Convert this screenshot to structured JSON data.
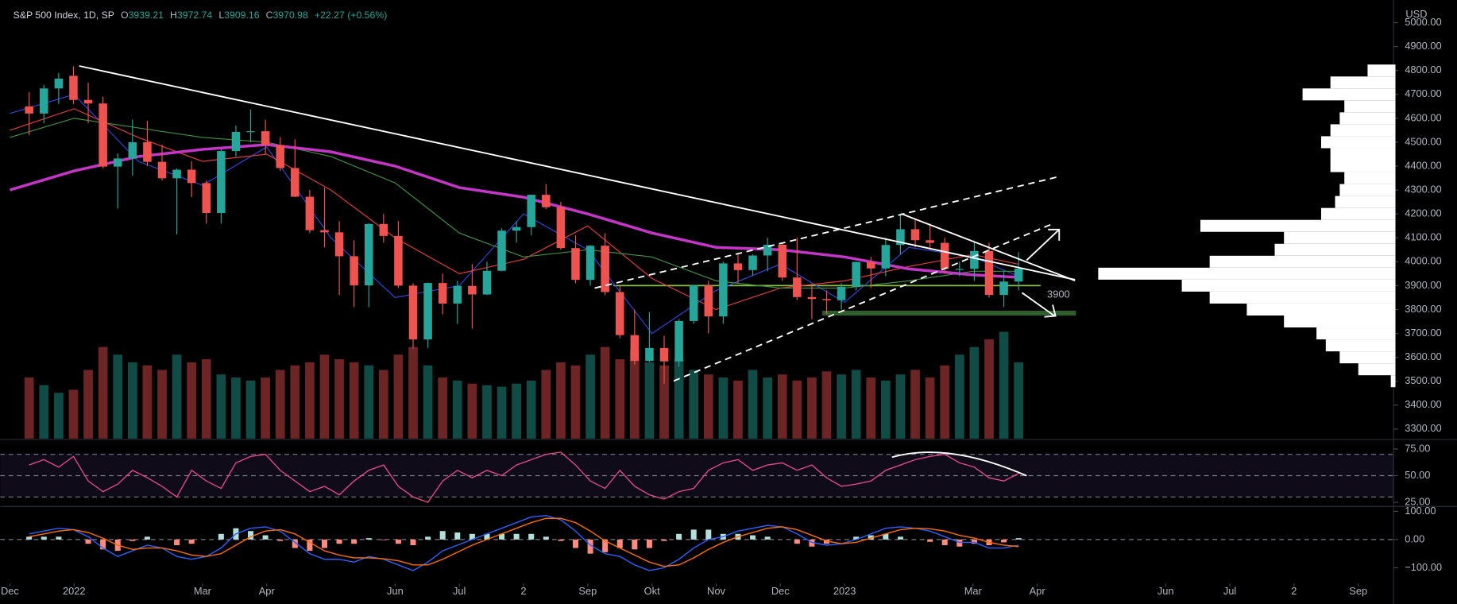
{
  "chart_data": [
    {
      "type": "candlestick",
      "title": "S&P 500 Index, 1D, SP",
      "ohlc_labels": [
        "O",
        "H",
        "L",
        "C"
      ],
      "ohlc_values": [
        3939.21,
        3972.74,
        3909.16,
        3970.98
      ],
      "change": "+22.27 (+0.56%)",
      "unit": "USD",
      "xlim": [
        -0.15,
        21.55
      ],
      "xticks": [
        {
          "value": 0,
          "label": "Dec"
        },
        {
          "value": 1,
          "label": "2022"
        },
        {
          "value": 3,
          "label": "Mar"
        },
        {
          "value": 4,
          "label": "Apr"
        },
        {
          "value": 6,
          "label": "Jun"
        },
        {
          "value": 7,
          "label": "Jul"
        },
        {
          "value": 8,
          "label": "2"
        },
        {
          "value": 9,
          "label": "Sep"
        },
        {
          "value": 10,
          "label": "Okt"
        },
        {
          "value": 11,
          "label": "Nov"
        },
        {
          "value": 12,
          "label": "Dec"
        },
        {
          "value": 13,
          "label": "2023"
        },
        {
          "value": 15,
          "label": "Mar"
        },
        {
          "value": 16,
          "label": "Apr"
        },
        {
          "value": 18,
          "label": "Jun"
        },
        {
          "value": 19,
          "label": "Jul"
        },
        {
          "value": 20,
          "label": "2"
        },
        {
          "value": 21,
          "label": "Sep"
        }
      ],
      "ylim": [
        3260,
        5095
      ],
      "yticks": [
        {
          "value": 3300,
          "label": "3300.00"
        },
        {
          "value": 3400,
          "label": "3400.00"
        },
        {
          "value": 3500,
          "label": "3500.00"
        },
        {
          "value": 3600,
          "label": "3600.00"
        },
        {
          "value": 3700,
          "label": "3700.00"
        },
        {
          "value": 3800,
          "label": "3800.00"
        },
        {
          "value": 3900,
          "label": "3900.00"
        },
        {
          "value": 4000,
          "label": "4000.00"
        },
        {
          "value": 4100,
          "label": "4100.00"
        },
        {
          "value": 4200,
          "label": "4200.00"
        },
        {
          "value": 4300,
          "label": "4300.00"
        },
        {
          "value": 4400,
          "label": "4400.00"
        },
        {
          "value": 4500,
          "label": "4500.00"
        },
        {
          "value": 4600,
          "label": "4600.00"
        },
        {
          "value": 4700,
          "label": "4700.00"
        },
        {
          "value": 4800,
          "label": "4800.00"
        },
        {
          "value": 4900,
          "label": "4900.00"
        },
        {
          "value": 5000,
          "label": "5000.00"
        }
      ],
      "up_color": "#26a69a",
      "down_color": "#ef5350",
      "x": [
        0.3,
        0.53,
        0.76,
        0.99,
        1.22,
        1.45,
        1.68,
        1.91,
        2.14,
        2.37,
        2.6,
        2.83,
        3.06,
        3.29,
        3.52,
        3.75,
        3.98,
        4.21,
        4.44,
        4.67,
        4.9,
        5.13,
        5.36,
        5.59,
        5.82,
        6.05,
        6.28,
        6.51,
        6.74,
        6.97,
        7.2,
        7.43,
        7.66,
        7.89,
        8.12,
        8.35,
        8.58,
        8.81,
        9.04,
        9.27,
        9.5,
        9.73,
        9.96,
        10.19,
        10.42,
        10.65,
        10.88,
        11.11,
        11.34,
        11.57,
        11.8,
        12.03,
        12.26,
        12.49,
        12.72,
        12.95,
        13.18,
        13.41,
        13.64,
        13.87,
        14.1,
        14.33,
        14.56,
        14.79,
        15.02,
        15.25,
        15.48,
        15.71
      ],
      "open": [
        4650,
        4620,
        4725,
        4778,
        4677,
        4662,
        4398,
        4432,
        4500,
        4418,
        4349,
        4385,
        4329,
        4204,
        4463,
        4543,
        4546,
        4488,
        4392,
        4272,
        4132,
        4123,
        4023,
        3901,
        4158,
        4108,
        3900,
        3675,
        3911,
        3825,
        3899,
        3863,
        3962,
        4130,
        4145,
        4280,
        4228,
        4057,
        3924,
        4067,
        3873,
        3693,
        3585,
        3639,
        3583,
        3752,
        3901,
        3771,
        3993,
        3965,
        4026,
        4071,
        3934,
        3852,
        3844,
        3839,
        3895,
        3999,
        3972,
        4070,
        4136,
        4090,
        4079,
        3970,
        3970,
        4045,
        3861,
        3917
      ],
      "high": [
        4710,
        4740,
        4790,
        4818,
        4749,
        4690,
        4453,
        4595,
        4590,
        4490,
        4390,
        4420,
        4340,
        4470,
        4570,
        4637,
        4594,
        4520,
        4512,
        4300,
        4310,
        4170,
        4090,
        4160,
        4200,
        4170,
        3910,
        3913,
        3950,
        3920,
        3990,
        4000,
        4140,
        4170,
        4280,
        4325,
        4250,
        4110,
        4070,
        4120,
        3900,
        3800,
        3790,
        3690,
        3760,
        3902,
        3920,
        4000,
        4030,
        4030,
        4100,
        4080,
        4100,
        3900,
        3880,
        3910,
        4000,
        4020,
        4100,
        4195,
        4180,
        4160,
        4100,
        4000,
        4080,
        4080,
        3960,
        4040
      ],
      "low": [
        4530,
        4580,
        4660,
        4660,
        4580,
        4390,
        4222,
        4360,
        4400,
        4340,
        4115,
        4270,
        4160,
        4160,
        4440,
        4500,
        4450,
        4380,
        4270,
        4120,
        4060,
        3860,
        3810,
        3810,
        4080,
        3890,
        3637,
        3640,
        3780,
        3740,
        3720,
        3860,
        3960,
        4080,
        4110,
        4220,
        4050,
        3910,
        3900,
        3860,
        3680,
        3570,
        3580,
        3490,
        3560,
        3740,
        3700,
        3740,
        3910,
        3940,
        3960,
        3920,
        3840,
        3760,
        3780,
        3800,
        3880,
        3890,
        3940,
        4030,
        4060,
        4050,
        3950,
        3940,
        3920,
        3850,
        3810,
        3880
      ],
      "close": [
        4620,
        4725,
        4766,
        4677,
        4662,
        4398,
        4432,
        4500,
        4418,
        4349,
        4385,
        4329,
        4204,
        4463,
        4543,
        4546,
        4488,
        4392,
        4272,
        4132,
        4123,
        4023,
        3901,
        4158,
        4108,
        3900,
        3675,
        3911,
        3825,
        3899,
        3863,
        3962,
        4130,
        4145,
        4280,
        4228,
        4057,
        3924,
        4067,
        3873,
        3693,
        3585,
        3639,
        3583,
        3752,
        3901,
        3771,
        3993,
        3965,
        4026,
        4071,
        3934,
        3852,
        3844,
        3839,
        3895,
        3999,
        3972,
        4070,
        4136,
        4090,
        4079,
        3970,
        3970,
        4045,
        3861,
        3917,
        3971
      ],
      "volume": [
        40,
        35,
        30,
        32,
        45,
        60,
        55,
        50,
        48,
        45,
        55,
        50,
        52,
        42,
        40,
        38,
        40,
        45,
        48,
        50,
        55,
        52,
        50,
        48,
        45,
        55,
        60,
        48,
        40,
        38,
        36,
        35,
        34,
        36,
        38,
        45,
        50,
        48,
        55,
        60,
        52,
        58,
        50,
        48,
        52,
        45,
        42,
        40,
        38,
        45,
        40,
        42,
        38,
        40,
        44,
        42,
        45,
        40,
        38,
        42,
        45,
        40,
        48,
        55,
        60,
        65,
        70,
        50
      ],
      "ma_x": [
        0,
        1,
        2,
        3,
        4,
        5,
        6,
        7,
        8,
        9,
        10,
        11,
        12,
        13,
        14,
        15,
        15.7
      ],
      "moving_averages": [
        {
          "color": "#2f45d8",
          "width": 1,
          "values": [
            4620,
            4700,
            4420,
            4320,
            4480,
            4100,
            3850,
            3900,
            4200,
            4050,
            3700,
            3880,
            3990,
            3830,
            4060,
            4020,
            3940
          ]
        },
        {
          "color": "#e03c3c",
          "width": 1,
          "values": [
            4550,
            4640,
            4520,
            4420,
            4450,
            4300,
            4100,
            3950,
            4010,
            4150,
            3930,
            3800,
            3890,
            3920,
            3980,
            4030,
            3990
          ]
        },
        {
          "color": "#3f9142",
          "width": 1,
          "values": [
            4520,
            4600,
            4560,
            4520,
            4500,
            4440,
            4330,
            4120,
            4020,
            4050,
            4020,
            3920,
            3890,
            3890,
            3920,
            3960,
            3960
          ]
        },
        {
          "color": "#c535c8",
          "width": 3,
          "values": [
            4300,
            4380,
            4440,
            4470,
            4490,
            4460,
            4400,
            4310,
            4270,
            4200,
            4120,
            4060,
            4050,
            4020,
            3970,
            3945,
            3935
          ]
        }
      ],
      "volume_profile": {
        "color": "#ffffff",
        "prices": [
          3500,
          3550,
          3600,
          3650,
          3700,
          3750,
          3800,
          3850,
          3900,
          3950,
          4000,
          4050,
          4100,
          4150,
          4200,
          4250,
          4300,
          4350,
          4400,
          4450,
          4500,
          4550,
          4600,
          4650,
          4700,
          4750,
          4800
        ],
        "values": [
          5,
          40,
          60,
          75,
          85,
          120,
          160,
          200,
          230,
          320,
          200,
          130,
          120,
          210,
          80,
          65,
          60,
          55,
          70,
          70,
          80,
          70,
          60,
          55,
          100,
          70,
          30
        ]
      },
      "annotations": [
        {
          "text": "3900",
          "value": 3900,
          "color": "#8bc34a"
        }
      ],
      "zone": {
        "range": [
          3775,
          3795
        ],
        "color": "#2e5e2a"
      }
    },
    {
      "type": "line",
      "ylim": [
        22,
        83
      ],
      "yticks": [
        {
          "value": 25,
          "label": "25.00"
        },
        {
          "value": 50,
          "label": "50.00"
        },
        {
          "value": 75,
          "label": "75.00"
        }
      ],
      "levels": [
        30,
        50,
        70
      ],
      "band": [
        30,
        70
      ],
      "color": "#e0468a",
      "values": [
        60,
        65,
        58,
        68,
        45,
        35,
        42,
        55,
        48,
        40,
        30,
        55,
        45,
        38,
        62,
        68,
        70,
        55,
        45,
        35,
        40,
        32,
        45,
        55,
        60,
        40,
        30,
        25,
        45,
        55,
        48,
        55,
        50,
        60,
        65,
        70,
        72,
        60,
        45,
        38,
        55,
        40,
        32,
        28,
        35,
        38,
        55,
        62,
        65,
        55,
        60,
        62,
        55,
        60,
        48,
        40,
        42,
        45,
        55,
        60,
        65,
        68,
        70,
        62,
        58,
        48,
        45,
        52
      ]
    },
    {
      "type": "macd",
      "ylim": [
        -156,
        114
      ],
      "yticks": [
        {
          "value": 100,
          "label": "100.00"
        },
        {
          "value": 0,
          "label": "0.00"
        },
        {
          "value": -100,
          "label": "−100.00"
        }
      ],
      "levels": [
        0
      ],
      "macd_color": "#2962ff",
      "signal_color": "#ff6d00",
      "hist_up_color": "#b2dfdb",
      "hist_down_color": "#ff8a80",
      "macd": [
        20,
        30,
        40,
        35,
        10,
        -30,
        -60,
        -40,
        -20,
        -30,
        -60,
        -70,
        -60,
        -30,
        20,
        40,
        45,
        30,
        -10,
        -50,
        -70,
        -70,
        -80,
        -60,
        -70,
        -90,
        -110,
        -80,
        -40,
        -20,
        0,
        20,
        40,
        60,
        80,
        85,
        70,
        30,
        -20,
        -50,
        -60,
        -90,
        -110,
        -100,
        -70,
        -30,
        0,
        10,
        30,
        40,
        50,
        45,
        20,
        -10,
        -20,
        -15,
        0,
        20,
        40,
        45,
        40,
        30,
        10,
        -10,
        -10,
        -30,
        -30,
        -20
      ],
      "signal": [
        10,
        20,
        30,
        35,
        25,
        5,
        -20,
        -35,
        -30,
        -30,
        -40,
        -55,
        -60,
        -50,
        -20,
        10,
        30,
        35,
        20,
        -10,
        -40,
        -55,
        -65,
        -65,
        -68,
        -75,
        -90,
        -90,
        -70,
        -45,
        -20,
        0,
        20,
        40,
        60,
        75,
        75,
        60,
        30,
        -5,
        -30,
        -55,
        -80,
        -95,
        -90,
        -65,
        -35,
        -10,
        10,
        25,
        40,
        45,
        35,
        15,
        -5,
        -15,
        -10,
        5,
        20,
        35,
        40,
        38,
        30,
        15,
        5,
        -10,
        -20,
        -25
      ],
      "histogram": [
        10,
        10,
        10,
        0,
        -15,
        -35,
        -40,
        -5,
        10,
        0,
        -20,
        -15,
        0,
        20,
        40,
        30,
        15,
        -5,
        -30,
        -40,
        -30,
        -15,
        -15,
        5,
        -2,
        -15,
        -20,
        10,
        30,
        25,
        20,
        20,
        20,
        20,
        20,
        10,
        -5,
        -30,
        -50,
        -45,
        -30,
        -35,
        -30,
        -5,
        20,
        35,
        35,
        20,
        20,
        15,
        10,
        0,
        -15,
        -25,
        -15,
        0,
        10,
        15,
        20,
        10,
        0,
        -8,
        -20,
        -25,
        -15,
        -20,
        -10,
        5
      ]
    }
  ]
}
